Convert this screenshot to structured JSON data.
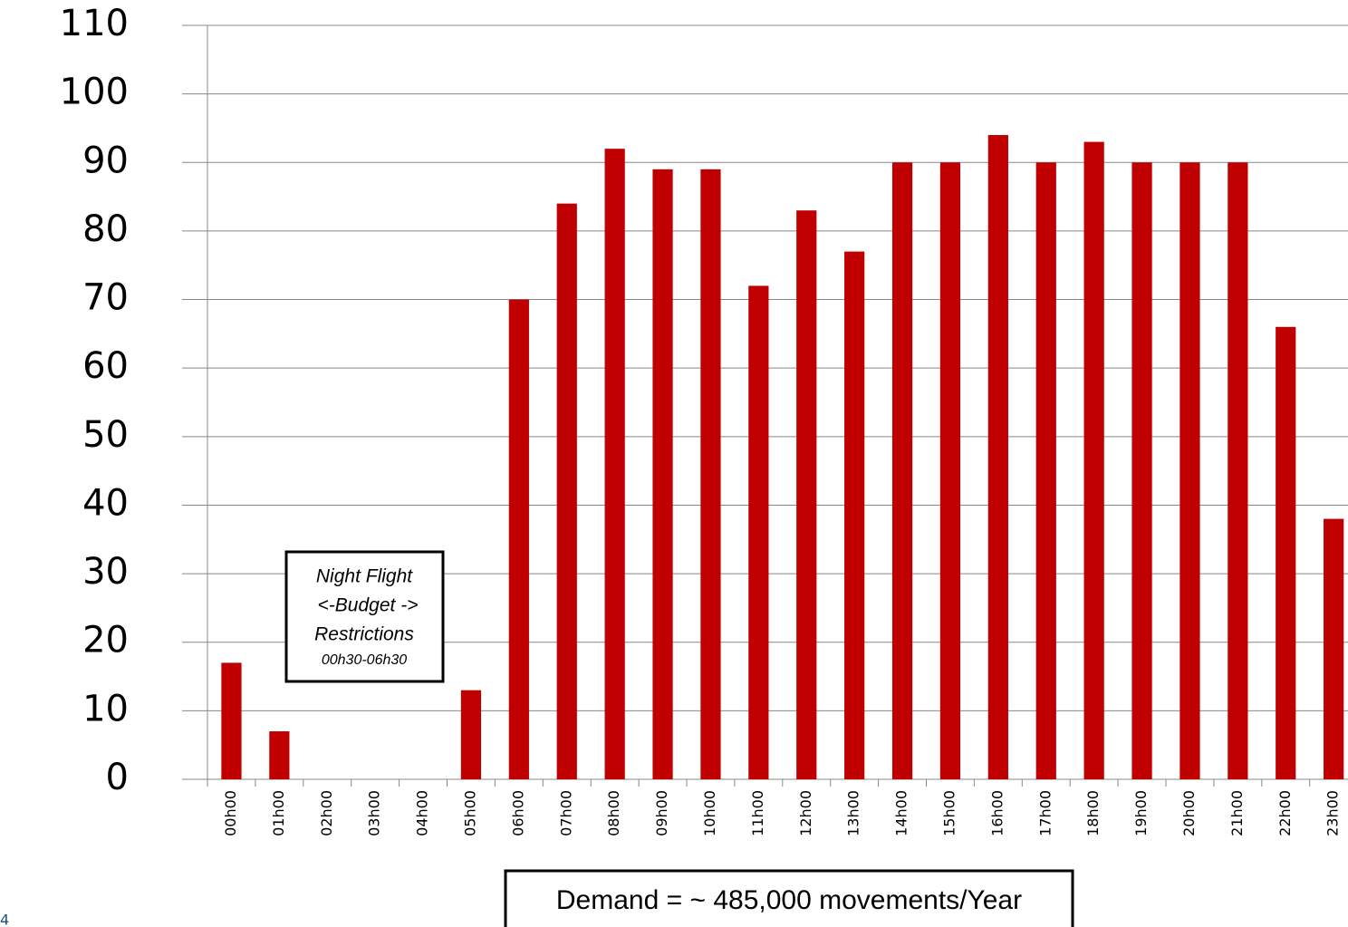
{
  "chart_data": {
    "type": "bar",
    "categories": [
      "00h00",
      "01h00",
      "02h00",
      "03h00",
      "04h00",
      "05h00",
      "06h00",
      "07h00",
      "08h00",
      "09h00",
      "10h00",
      "11h00",
      "12h00",
      "13h00",
      "14h00",
      "15h00",
      "16h00",
      "17h00",
      "18h00",
      "19h00",
      "20h00",
      "21h00",
      "22h00",
      "23h00"
    ],
    "values": [
      17,
      7,
      0,
      0,
      0,
      13,
      70,
      84,
      92,
      89,
      89,
      72,
      83,
      77,
      90,
      90,
      94,
      90,
      93,
      90,
      90,
      90,
      66,
      38
    ],
    "color": "#c00000",
    "ylim": [
      0,
      110
    ],
    "yticks": [
      0,
      10,
      20,
      30,
      40,
      50,
      60,
      70,
      80,
      90,
      100,
      110
    ],
    "grid": true,
    "note": [
      "Night Flight",
      "<-Budget ->",
      "Restrictions",
      "00h30-06h30"
    ],
    "footnote": "Demand = ~ 485,000 movements/Year"
  },
  "page_number": "4"
}
